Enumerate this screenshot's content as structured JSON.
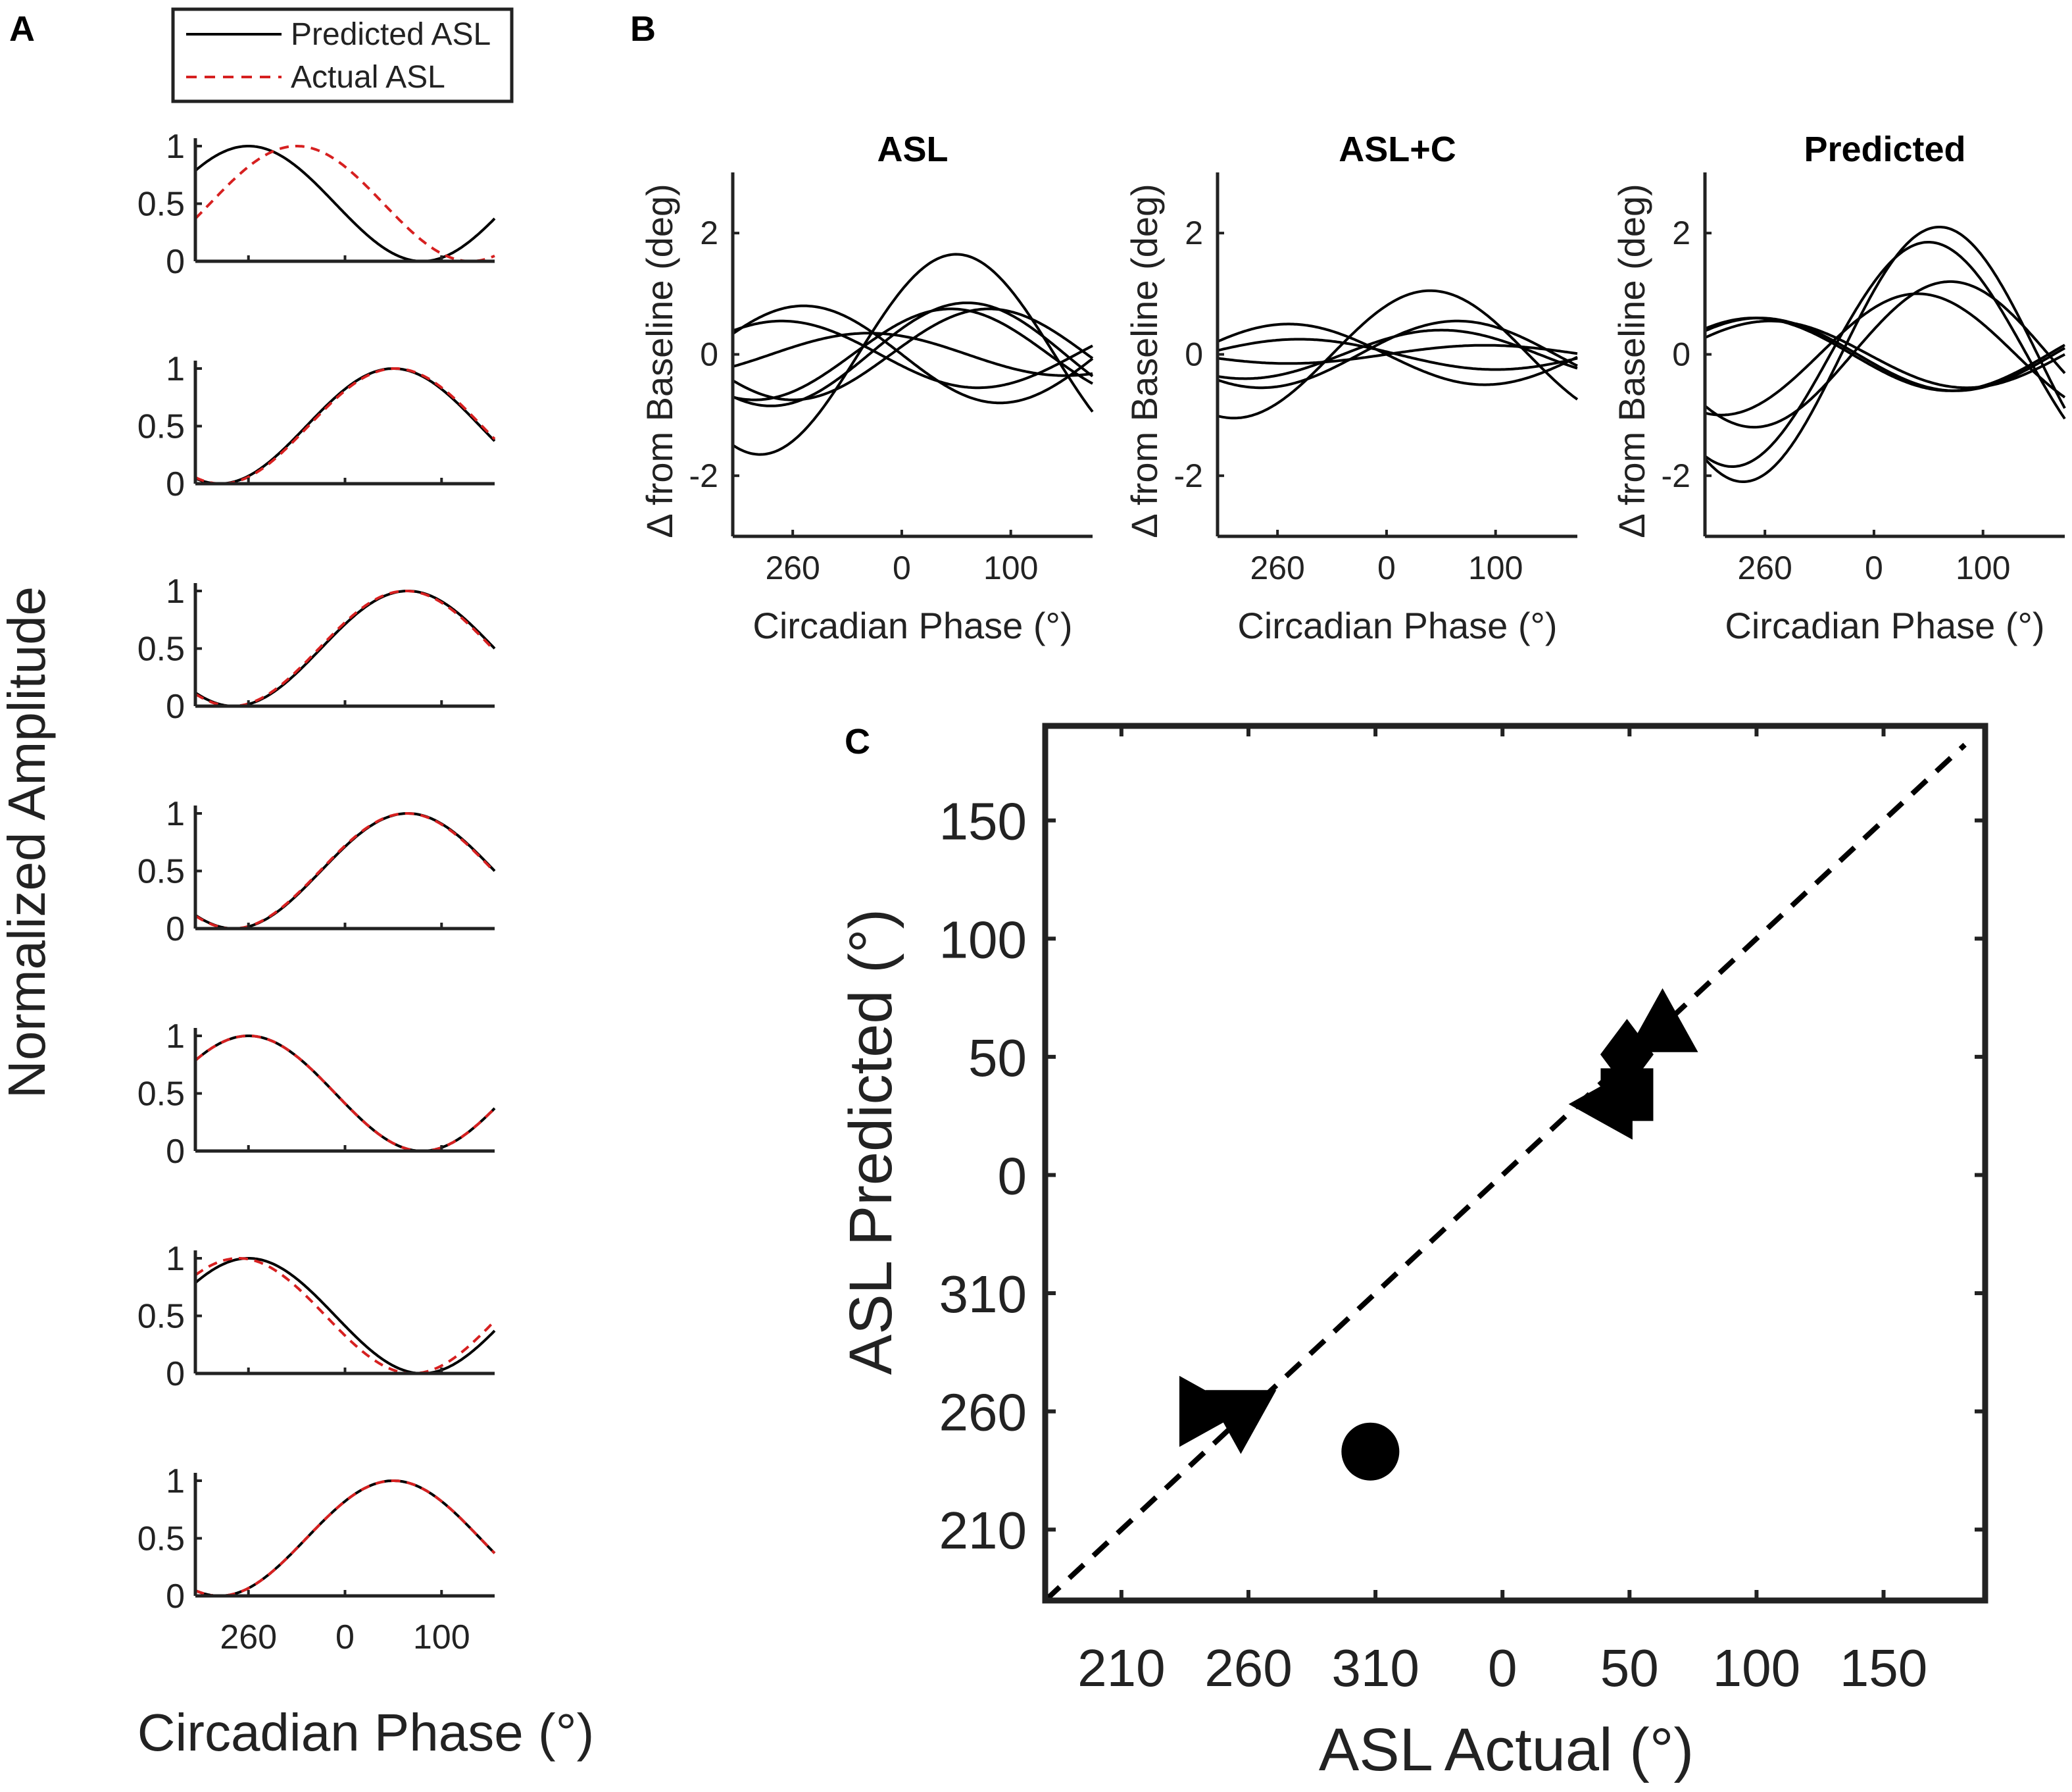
{
  "panel_letters": [
    "A",
    "B",
    "C"
  ],
  "chart_data": [
    {
      "panel": "A",
      "type": "line",
      "xlabel": "Circadian Phase (°)",
      "ylabel": "Normalized Amplitude",
      "ylim": [
        0,
        1
      ],
      "yticks": [
        "0",
        "0.5",
        "1"
      ],
      "xticks": [
        "260",
        "0",
        "100"
      ],
      "x_phase_range_deg": [
        205,
        155
      ],
      "legend": {
        "location": "top",
        "entries": [
          "Predicted ASL",
          "Actual ASL"
        ]
      },
      "series_style": {
        "Predicted ASL": {
          "color": "#000000",
          "dash": "solid"
        },
        "Actual ASL": {
          "color": "#d62020",
          "dash": "dashed"
        }
      },
      "subplots": [
        {
          "predicted_peak_deg": 260,
          "actual_peak_deg": 310
        },
        {
          "predicted_peak_deg": 50,
          "actual_peak_deg": 52
        },
        {
          "predicted_peak_deg": 65,
          "actual_peak_deg": 63
        },
        {
          "predicted_peak_deg": 65,
          "actual_peak_deg": 64
        },
        {
          "predicted_peak_deg": 260,
          "actual_peak_deg": 260
        },
        {
          "predicted_peak_deg": 260,
          "actual_peak_deg": 250
        },
        {
          "predicted_peak_deg": 50,
          "actual_peak_deg": 50
        }
      ]
    },
    {
      "panel": "B",
      "type": "line",
      "ylabel": "Δ from Baseline (deg)",
      "xlabel": "Circadian Phase (°)",
      "ylim": [
        -3,
        3
      ],
      "yticks": [
        "-2",
        "0",
        "2"
      ],
      "xticks": [
        "260",
        "0",
        "100"
      ],
      "x_phase_range_deg": [
        205,
        175
      ],
      "subplots": [
        {
          "title": "ASL",
          "curves": [
            {
              "amplitude": 1.65,
              "peak_deg": 50
            },
            {
              "amplitude": 0.85,
              "peak_deg": 60
            },
            {
              "amplitude": 0.75,
              "peak_deg": 45
            },
            {
              "amplitude": 0.8,
              "peak_deg": 270
            },
            {
              "amplitude": 0.55,
              "peak_deg": 250
            },
            {
              "amplitude": 0.35,
              "peak_deg": 330
            },
            {
              "amplitude": 0.75,
              "peak_deg": 80
            }
          ]
        },
        {
          "title": "ASL+C",
          "curves": [
            {
              "amplitude": 1.05,
              "peak_deg": 40
            },
            {
              "amplitude": 0.5,
              "peak_deg": 270
            },
            {
              "amplitude": 0.55,
              "peak_deg": 65
            },
            {
              "amplitude": 0.4,
              "peak_deg": 50
            },
            {
              "amplitude": 0.25,
              "peak_deg": 280
            },
            {
              "amplitude": 0.15,
              "peak_deg": 90
            }
          ]
        },
        {
          "title": "Predicted",
          "curves": [
            {
              "amplitude": 2.1,
              "peak_deg": 60
            },
            {
              "amplitude": 1.85,
              "peak_deg": 50
            },
            {
              "amplitude": 1.2,
              "peak_deg": 70
            },
            {
              "amplitude": 1.0,
              "peak_deg": 40
            },
            {
              "amplitude": 0.6,
              "peak_deg": 255
            },
            {
              "amplitude": 0.55,
              "peak_deg": 265
            },
            {
              "amplitude": 0.6,
              "peak_deg": 250
            }
          ]
        }
      ]
    },
    {
      "panel": "C",
      "type": "scatter",
      "xlabel": "ASL Actual (°)",
      "ylabel": "ASL Predicted (°)",
      "xticks": [
        "210",
        "260",
        "310",
        "0",
        "50",
        "100",
        "150"
      ],
      "yticks": [
        "210",
        "260",
        "310",
        "0",
        "50",
        "100",
        "150"
      ],
      "axis_unwrapped_range": [
        180,
        550
      ],
      "identity_line": {
        "style": "dashed",
        "color": "#000000"
      },
      "points": [
        {
          "marker": "circle",
          "actual_deg": 308,
          "predicted_deg": 243
        },
        {
          "marker": "triangle-right",
          "actual_deg": 244,
          "predicted_deg": 260
        },
        {
          "marker": "triangle-down",
          "actual_deg": 257,
          "predicted_deg": 257
        },
        {
          "marker": "triangle-left",
          "actual_deg": 40,
          "predicted_deg": 30
        },
        {
          "marker": "square",
          "actual_deg": 49,
          "predicted_deg": 34
        },
        {
          "marker": "diamond",
          "actual_deg": 49,
          "predicted_deg": 51
        },
        {
          "marker": "triangle-up",
          "actual_deg": 63,
          "predicted_deg": 64
        }
      ]
    }
  ]
}
